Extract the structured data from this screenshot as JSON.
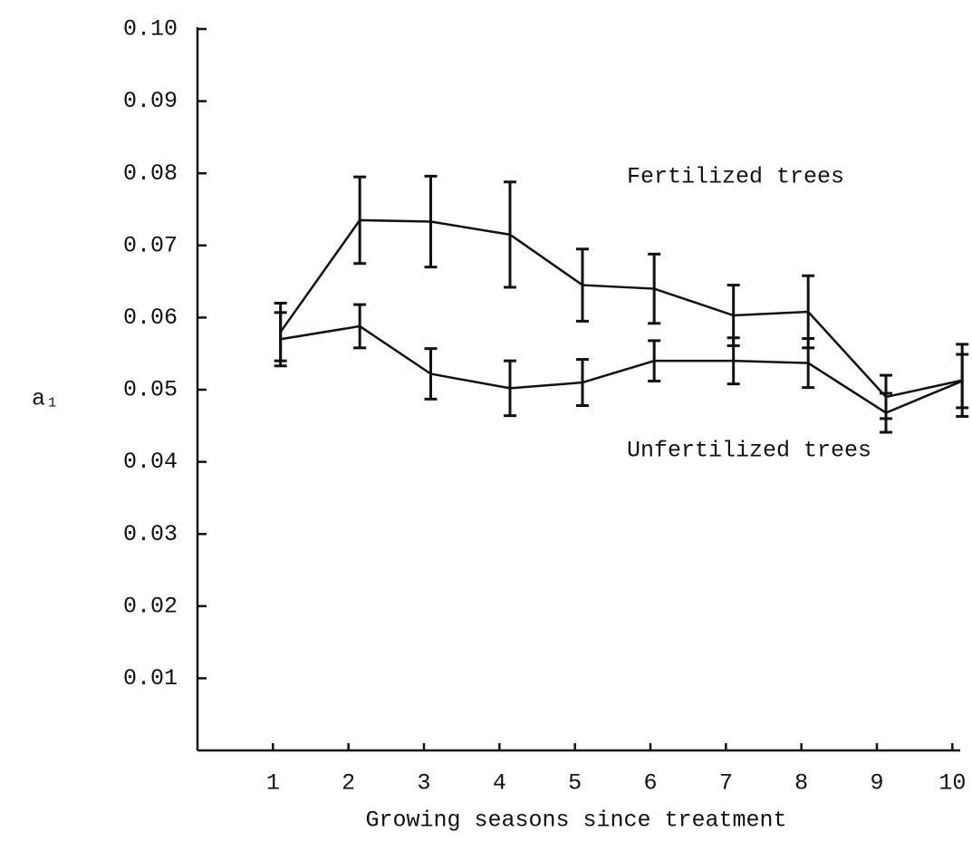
{
  "chart_data": {
    "type": "line",
    "y_label": "a₁",
    "x_label": "Growing seasons since treatment",
    "x": [
      1.1,
      2.15,
      3.09,
      4.14,
      5.1,
      6.05,
      7.1,
      8.09,
      9.12,
      10.13
    ],
    "xlim": [
      0,
      10.2
    ],
    "xticks": [
      1,
      2,
      3,
      4,
      5,
      6,
      7,
      8,
      9,
      10
    ],
    "ylim": [
      0,
      0.1
    ],
    "yticks": [
      0.01,
      0.02,
      0.03,
      0.04,
      0.05,
      0.06,
      0.07,
      0.08,
      0.09,
      {
        "value": 0.1,
        "label": "0.10"
      }
    ],
    "series": [
      {
        "name": "Fertilized trees",
        "color": "#111111",
        "values": [
          0.058,
          0.0735,
          0.0733,
          0.0715,
          0.0645,
          0.064,
          0.0603,
          0.0608,
          0.049,
          0.0513
        ],
        "errors": [
          0.004,
          0.006,
          0.0063,
          0.0073,
          0.005,
          0.0048,
          0.0042,
          0.005,
          0.003,
          0.005
        ]
      },
      {
        "name": "Unfertilized trees",
        "color": "#111111",
        "values": [
          0.057,
          0.0588,
          0.0522,
          0.0502,
          0.051,
          0.054,
          0.054,
          0.0537,
          0.0468,
          0.0512
        ],
        "errors": [
          0.0037,
          0.003,
          0.0035,
          0.0038,
          0.0032,
          0.0028,
          0.0032,
          0.0034,
          0.0027,
          0.0037
        ]
      }
    ]
  }
}
